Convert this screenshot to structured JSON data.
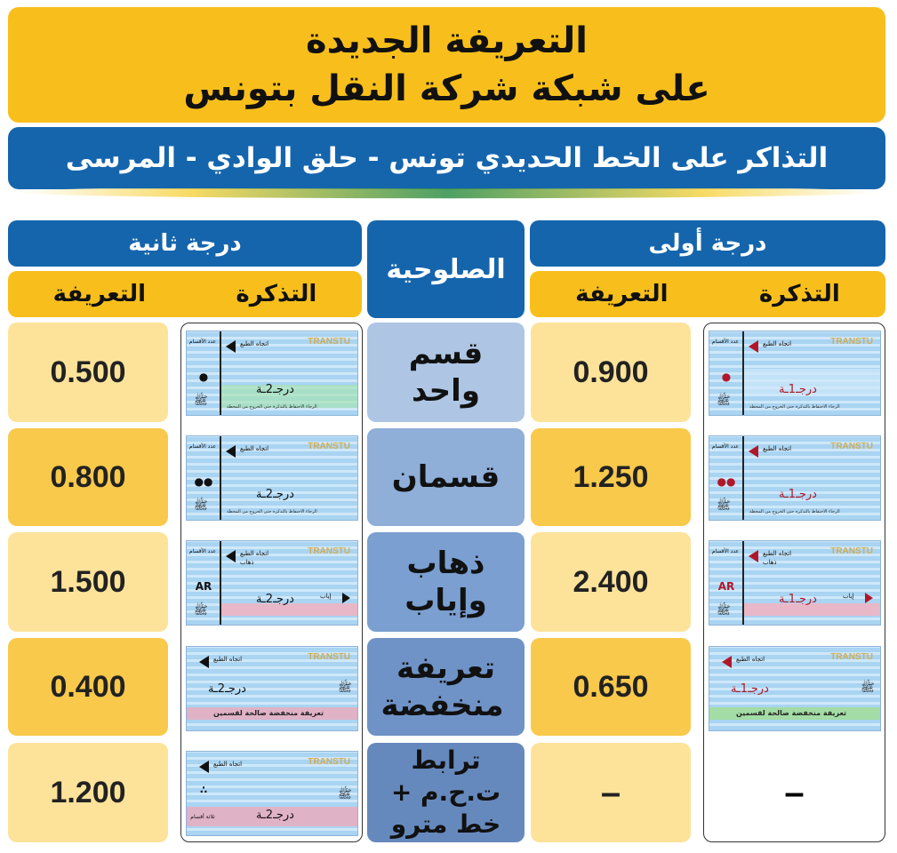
{
  "title": {
    "line1": "التعريفة الجديدة",
    "line2": "على شبكة شركة النقل بتونس"
  },
  "subtitle": "التذاكر على الخط الحديدي تونس - حلق الوادي - المرسى",
  "headers": {
    "first_class": "درجة أولى",
    "second_class": "درجة ثانية",
    "validity": "الصلوحية",
    "ticket": "التذكرة",
    "fare": "التعريفة"
  },
  "rows": [
    {
      "validity": "قسم واحد",
      "first_price": "0.900",
      "second_price": "0.500",
      "first_mark": "●",
      "second_mark": "●"
    },
    {
      "validity": "قسمان",
      "first_price": "1.250",
      "second_price": "0.800",
      "first_mark": "●●",
      "second_mark": "●●"
    },
    {
      "validity": "ذهاب وإياب",
      "first_price": "2.400",
      "second_price": "1.500",
      "first_mark": "AR",
      "second_mark": "AR"
    },
    {
      "validity": "تعريفة منخفضة",
      "first_price": "0.650",
      "second_price": "0.400",
      "first_mark": "",
      "second_mark": ""
    },
    {
      "validity": "ترابط ت.ح.م + خط مترو",
      "first_price": "–",
      "second_price": "1.200",
      "first_mark": "",
      "second_mark": "∴"
    }
  ],
  "ticket_text": {
    "sections_label": "عدد الأقسام",
    "direction_label": "اتجاه الطبع",
    "first_class_label": "درجـ1ـة",
    "second_class_label": "درجـ2ـة",
    "brand": "TRANSTU",
    "note": "الرجاء الاحتفاظ بالتذكرة حتى الخروج من المحطة",
    "reduced_label": "تعريفة منخفضة صالحة لقسمين",
    "go_label": "ذهاب",
    "return_label": "إياب",
    "three_sections": "ثلاثة أقسام"
  },
  "colors": {
    "yellow": "#f8bf1c",
    "blue": "#1565ad",
    "price_light": "#fde39a",
    "validity_shades": [
      "#aec6e4",
      "#8faed8",
      "#7a9fd0",
      "#6f93c6",
      "#6689bd"
    ]
  }
}
